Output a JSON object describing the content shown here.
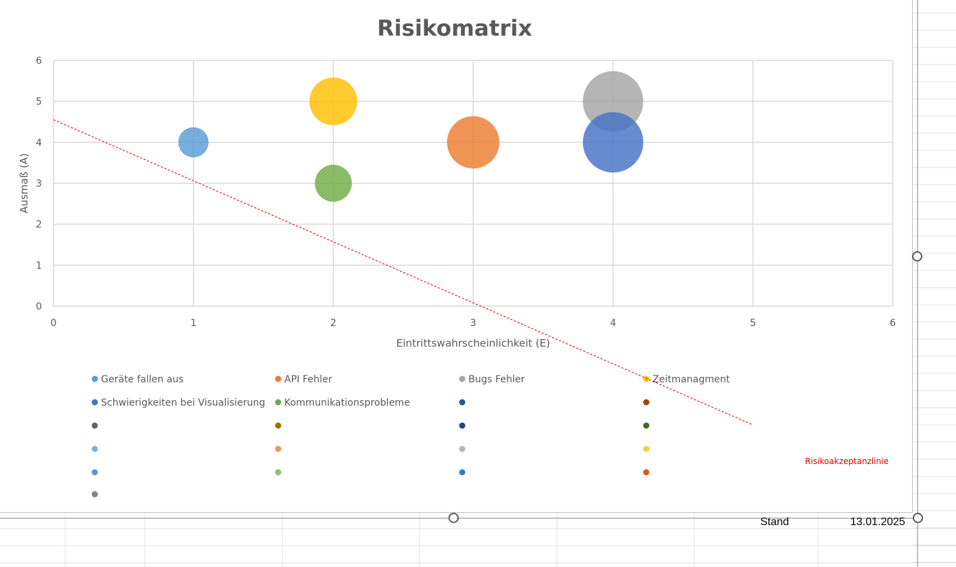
{
  "sheet": {
    "stand_label": "Stand",
    "stand_value": "13.01.2025"
  },
  "chart_data": {
    "type": "bubble",
    "title": "Risikomatrix",
    "xlabel": "Eintrittswahrscheinlichkeit (E)",
    "ylabel": "Ausmaß (A)",
    "xlim": [
      0,
      6
    ],
    "ylim": [
      0,
      6
    ],
    "xticks": [
      "0",
      "1",
      "2",
      "3",
      "4",
      "5",
      "6"
    ],
    "yticks": [
      "0",
      "1",
      "2",
      "3",
      "4",
      "5",
      "6"
    ],
    "grid": true,
    "legend_position": "bottom",
    "series": [
      {
        "name": "Geräte fallen aus",
        "x": 1,
        "y": 4,
        "size": 4,
        "color": "#5B9BD5"
      },
      {
        "name": "API Fehler",
        "x": 3,
        "y": 4,
        "size": 12,
        "color": "#ED7D31"
      },
      {
        "name": "Bugs Fehler",
        "x": 4,
        "y": 5,
        "size": 16,
        "color": "#A5A5A5"
      },
      {
        "name": "Zeitmanagment",
        "x": 2,
        "y": 5,
        "size": 10,
        "color": "#FFC000"
      },
      {
        "name": "Schwierigkeiten bei Visualisierung",
        "x": 4,
        "y": 4,
        "size": 16,
        "color": "#4472C4"
      },
      {
        "name": "Kommunikationsprobleme",
        "x": 2,
        "y": 3,
        "size": 6,
        "color": "#70AD47"
      }
    ],
    "empty_legend_colors": [
      "#255E91",
      "#9E480E",
      "#636363",
      "#997300",
      "#264478",
      "#43682B",
      "#7CAFDD",
      "#F1975A",
      "#B7B7B7",
      "#FFCD33",
      "#698ED0",
      "#8CC168",
      "#327DC2",
      "#D26012",
      "#848484"
    ],
    "acceptance_line": {
      "label": "Risikoakzeptanzlinie",
      "color": "#e00000",
      "points": [
        [
          0,
          4.55
        ],
        [
          5,
          -2.9
        ]
      ]
    }
  }
}
